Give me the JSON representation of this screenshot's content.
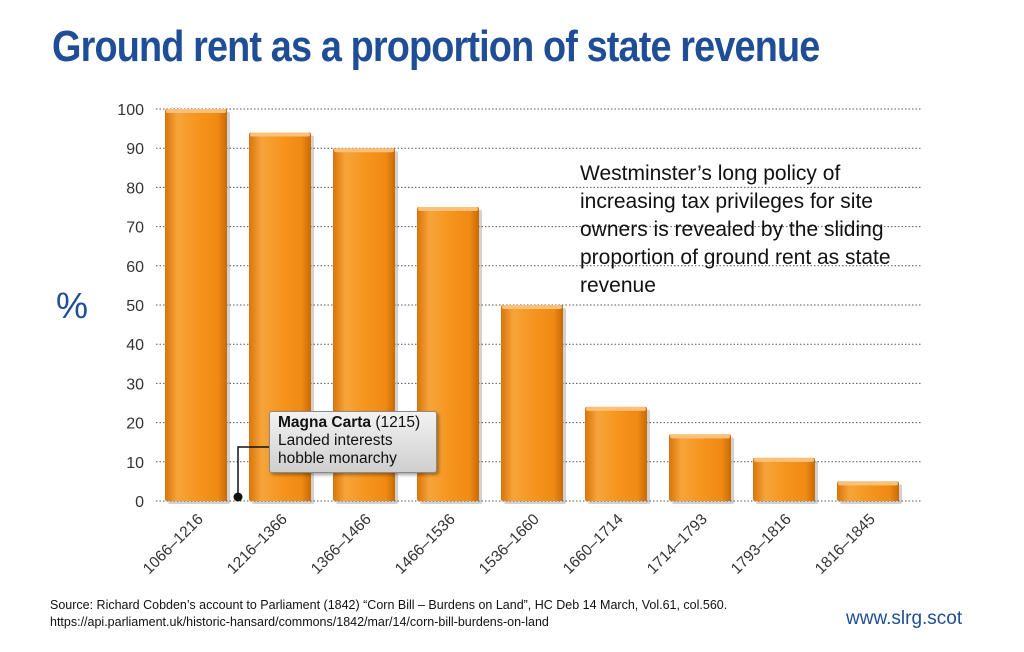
{
  "header": {
    "title": "Ground rent as a proportion of state revenue"
  },
  "chart_data": {
    "type": "bar",
    "ylabel": "%",
    "ylim": [
      0,
      100
    ],
    "yticks": [
      0,
      10,
      20,
      30,
      40,
      50,
      60,
      70,
      80,
      90,
      100
    ],
    "grid": true,
    "categories": [
      "1066–1216",
      "1216–1366",
      "1366–1466",
      "1466–1536",
      "1536–1660",
      "1660–1714",
      "1714–1793",
      "1793–1816",
      "1816–1845"
    ],
    "values": [
      100,
      94,
      90,
      75,
      50,
      24,
      17,
      11,
      5
    ],
    "bar_color": "#f4941c",
    "annotation": "Westminster’s long policy of increasing tax privileges for site owners is revealed by the sliding proportion of ground rent as state revenue",
    "callout": {
      "title": "Magna Carta",
      "year": "(1215)",
      "line1": "Landed interests",
      "line2": "hobble monarchy"
    }
  },
  "footer": {
    "source_line1": "Source: Richard Cobden’s account to Parliament (1842) “Corn Bill – Burdens on Land”, HC Deb 14 March, Vol.61, col.560.",
    "source_line2": "https://api.parliament.uk/historic-hansard/commons/1842/mar/14/corn-bill-burdens-on-land",
    "website": "www.slrg.scot"
  },
  "colors": {
    "title": "#1f4e96",
    "bar": "#f4941c"
  }
}
